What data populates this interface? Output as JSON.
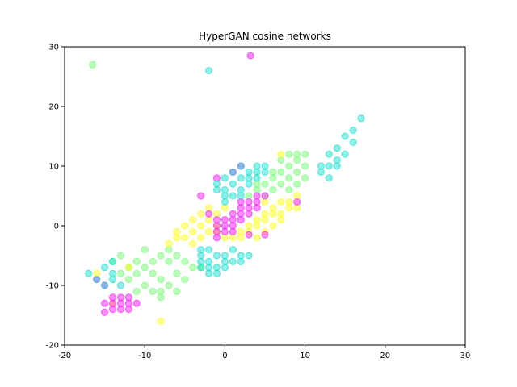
{
  "chart_data": {
    "type": "scatter",
    "title": "HyperGAN cosine networks",
    "xlabel": "",
    "ylabel": "",
    "xlim": [
      -20,
      30
    ],
    "ylim": [
      -20,
      30
    ],
    "xticks": [
      -20,
      -10,
      0,
      10,
      20,
      30
    ],
    "yticks": [
      -20,
      -10,
      0,
      10,
      20,
      30
    ],
    "grid": false,
    "legend": "none",
    "series": [
      {
        "color": "#66ff66",
        "points": [
          [
            -16.5,
            27
          ],
          [
            -8,
            -9
          ],
          [
            -9,
            -8
          ],
          [
            -10,
            -7
          ],
          [
            -7,
            -10
          ],
          [
            -9,
            -6
          ],
          [
            -7,
            -6
          ],
          [
            -6,
            -8
          ],
          [
            -8,
            -5
          ],
          [
            -10,
            -10
          ],
          [
            -11,
            -8
          ],
          [
            -6,
            -11
          ],
          [
            -5,
            -9
          ],
          [
            -8,
            -11
          ],
          [
            -11,
            -6
          ],
          [
            -10,
            -4
          ],
          [
            -7,
            -4
          ],
          [
            -5,
            -6
          ],
          [
            -12,
            -9
          ],
          [
            -9,
            -11
          ],
          [
            -4,
            -7
          ],
          [
            -12,
            -7
          ],
          [
            -8,
            -12
          ],
          [
            -6,
            -5
          ],
          [
            -3,
            -7
          ],
          [
            -11,
            -11
          ],
          [
            -13,
            -8
          ],
          [
            4,
            6
          ],
          [
            5,
            7
          ],
          [
            6,
            8
          ],
          [
            7,
            9
          ],
          [
            8,
            10
          ],
          [
            9,
            11
          ],
          [
            6,
            6
          ],
          [
            7,
            7
          ],
          [
            8,
            8
          ],
          [
            9,
            9
          ],
          [
            10,
            10
          ],
          [
            5,
            5
          ],
          [
            7,
            11
          ],
          [
            8,
            12
          ],
          [
            9,
            12
          ],
          [
            10,
            12
          ],
          [
            6,
            9
          ],
          [
            3,
            5
          ],
          [
            4,
            7
          ],
          [
            8,
            6
          ],
          [
            9,
            7
          ],
          [
            10,
            8
          ],
          [
            -13,
            -5
          ],
          [
            -14,
            -6
          ]
        ]
      },
      {
        "color": "#ffff00",
        "points": [
          [
            -6,
            -1
          ],
          [
            -5,
            0
          ],
          [
            -4,
            1
          ],
          [
            -3,
            2
          ],
          [
            -2,
            3
          ],
          [
            -5,
            -2
          ],
          [
            -4,
            -1
          ],
          [
            -3,
            0
          ],
          [
            -2,
            1
          ],
          [
            -6,
            -2
          ],
          [
            -7,
            -3
          ],
          [
            -4,
            -3
          ],
          [
            -3,
            -2
          ],
          [
            -2,
            -1
          ],
          [
            -1,
            0
          ],
          [
            0,
            -2
          ],
          [
            1,
            -2
          ],
          [
            2,
            -1
          ],
          [
            3,
            0
          ],
          [
            4,
            1
          ],
          [
            5,
            2
          ],
          [
            6,
            3
          ],
          [
            7,
            4
          ],
          [
            3,
            -1
          ],
          [
            4,
            0
          ],
          [
            5,
            1
          ],
          [
            6,
            2
          ],
          [
            7,
            2
          ],
          [
            8,
            3
          ],
          [
            5,
            -1
          ],
          [
            6,
            0
          ],
          [
            8,
            4
          ],
          [
            9,
            5
          ],
          [
            7,
            1
          ],
          [
            4,
            -2
          ],
          [
            2,
            -2
          ],
          [
            0,
            3
          ],
          [
            -1,
            2
          ],
          [
            -1,
            -1
          ],
          [
            -8,
            -16
          ],
          [
            -14,
            -13
          ],
          [
            -16,
            -8
          ],
          [
            -12,
            -7
          ],
          [
            7,
            12
          ],
          [
            5,
            4
          ],
          [
            9,
            3
          ]
        ]
      },
      {
        "color": "#ff00ff",
        "points": [
          [
            3.2,
            28.5
          ],
          [
            0,
            0
          ],
          [
            1,
            1
          ],
          [
            2,
            2
          ],
          [
            3,
            3
          ],
          [
            4,
            4
          ],
          [
            5,
            5
          ],
          [
            0,
            1
          ],
          [
            1,
            2
          ],
          [
            2,
            3
          ],
          [
            3,
            4
          ],
          [
            4,
            5
          ],
          [
            -1,
            0
          ],
          [
            0,
            -1
          ],
          [
            1,
            0
          ],
          [
            2,
            1
          ],
          [
            3,
            2
          ],
          [
            4,
            3
          ],
          [
            -1,
            -1
          ],
          [
            1,
            -1
          ],
          [
            -1,
            1
          ],
          [
            2,
            4
          ],
          [
            -14,
            -12
          ],
          [
            -13,
            -13
          ],
          [
            -12,
            -14
          ],
          [
            -13,
            -12
          ],
          [
            -14,
            -13
          ],
          [
            -12,
            -12
          ],
          [
            -15,
            -13
          ],
          [
            -14,
            -14
          ],
          [
            -11,
            -13
          ],
          [
            -13,
            -14
          ],
          [
            -15,
            -14.5
          ],
          [
            -12,
            -13
          ],
          [
            -2,
            2
          ],
          [
            -1,
            -2
          ],
          [
            2,
            10
          ],
          [
            1,
            9
          ],
          [
            -1,
            8
          ],
          [
            3,
            -1.5
          ],
          [
            5,
            -1.5
          ],
          [
            9,
            4
          ],
          [
            -3,
            5
          ],
          [
            -16,
            -9
          ],
          [
            -15,
            -10
          ]
        ]
      },
      {
        "color": "#00ddcc",
        "points": [
          [
            -2,
            26
          ],
          [
            0,
            6
          ],
          [
            1,
            7
          ],
          [
            2,
            8
          ],
          [
            3,
            9
          ],
          [
            4,
            10
          ],
          [
            0,
            5
          ],
          [
            1,
            5
          ],
          [
            2,
            6
          ],
          [
            3,
            7
          ],
          [
            4,
            8
          ],
          [
            5,
            9
          ],
          [
            -1,
            6
          ],
          [
            0,
            8
          ],
          [
            1,
            9
          ],
          [
            2,
            10
          ],
          [
            3,
            8
          ],
          [
            4,
            9
          ],
          [
            5,
            10
          ],
          [
            -1,
            7
          ],
          [
            0,
            4
          ],
          [
            2,
            5
          ],
          [
            -3,
            -5
          ],
          [
            -2,
            -6
          ],
          [
            -1,
            -7
          ],
          [
            0,
            -5
          ],
          [
            1,
            -6
          ],
          [
            2,
            -5
          ],
          [
            -3,
            -6
          ],
          [
            -2,
            -7
          ],
          [
            -1,
            -5
          ],
          [
            0,
            -6
          ],
          [
            1,
            -4
          ],
          [
            2,
            -6
          ],
          [
            -3,
            -7
          ],
          [
            -2,
            -8
          ],
          [
            -1,
            -8
          ],
          [
            0,
            -7
          ],
          [
            3,
            -5
          ],
          [
            -3,
            -4
          ],
          [
            -2,
            -4
          ],
          [
            12,
            9
          ],
          [
            13,
            10
          ],
          [
            14,
            11
          ],
          [
            15,
            12
          ],
          [
            16,
            14
          ],
          [
            13,
            8
          ],
          [
            12,
            10
          ],
          [
            14,
            13
          ],
          [
            15,
            15
          ],
          [
            16,
            16
          ],
          [
            17,
            18
          ],
          [
            14,
            10
          ],
          [
            13,
            12
          ],
          [
            -15,
            -7
          ],
          [
            -14,
            -8
          ],
          [
            -16,
            -9
          ],
          [
            -15,
            -10
          ],
          [
            -14,
            -9
          ],
          [
            -13,
            -10
          ],
          [
            -17,
            -8
          ],
          [
            -14,
            -6
          ]
        ]
      }
    ]
  }
}
